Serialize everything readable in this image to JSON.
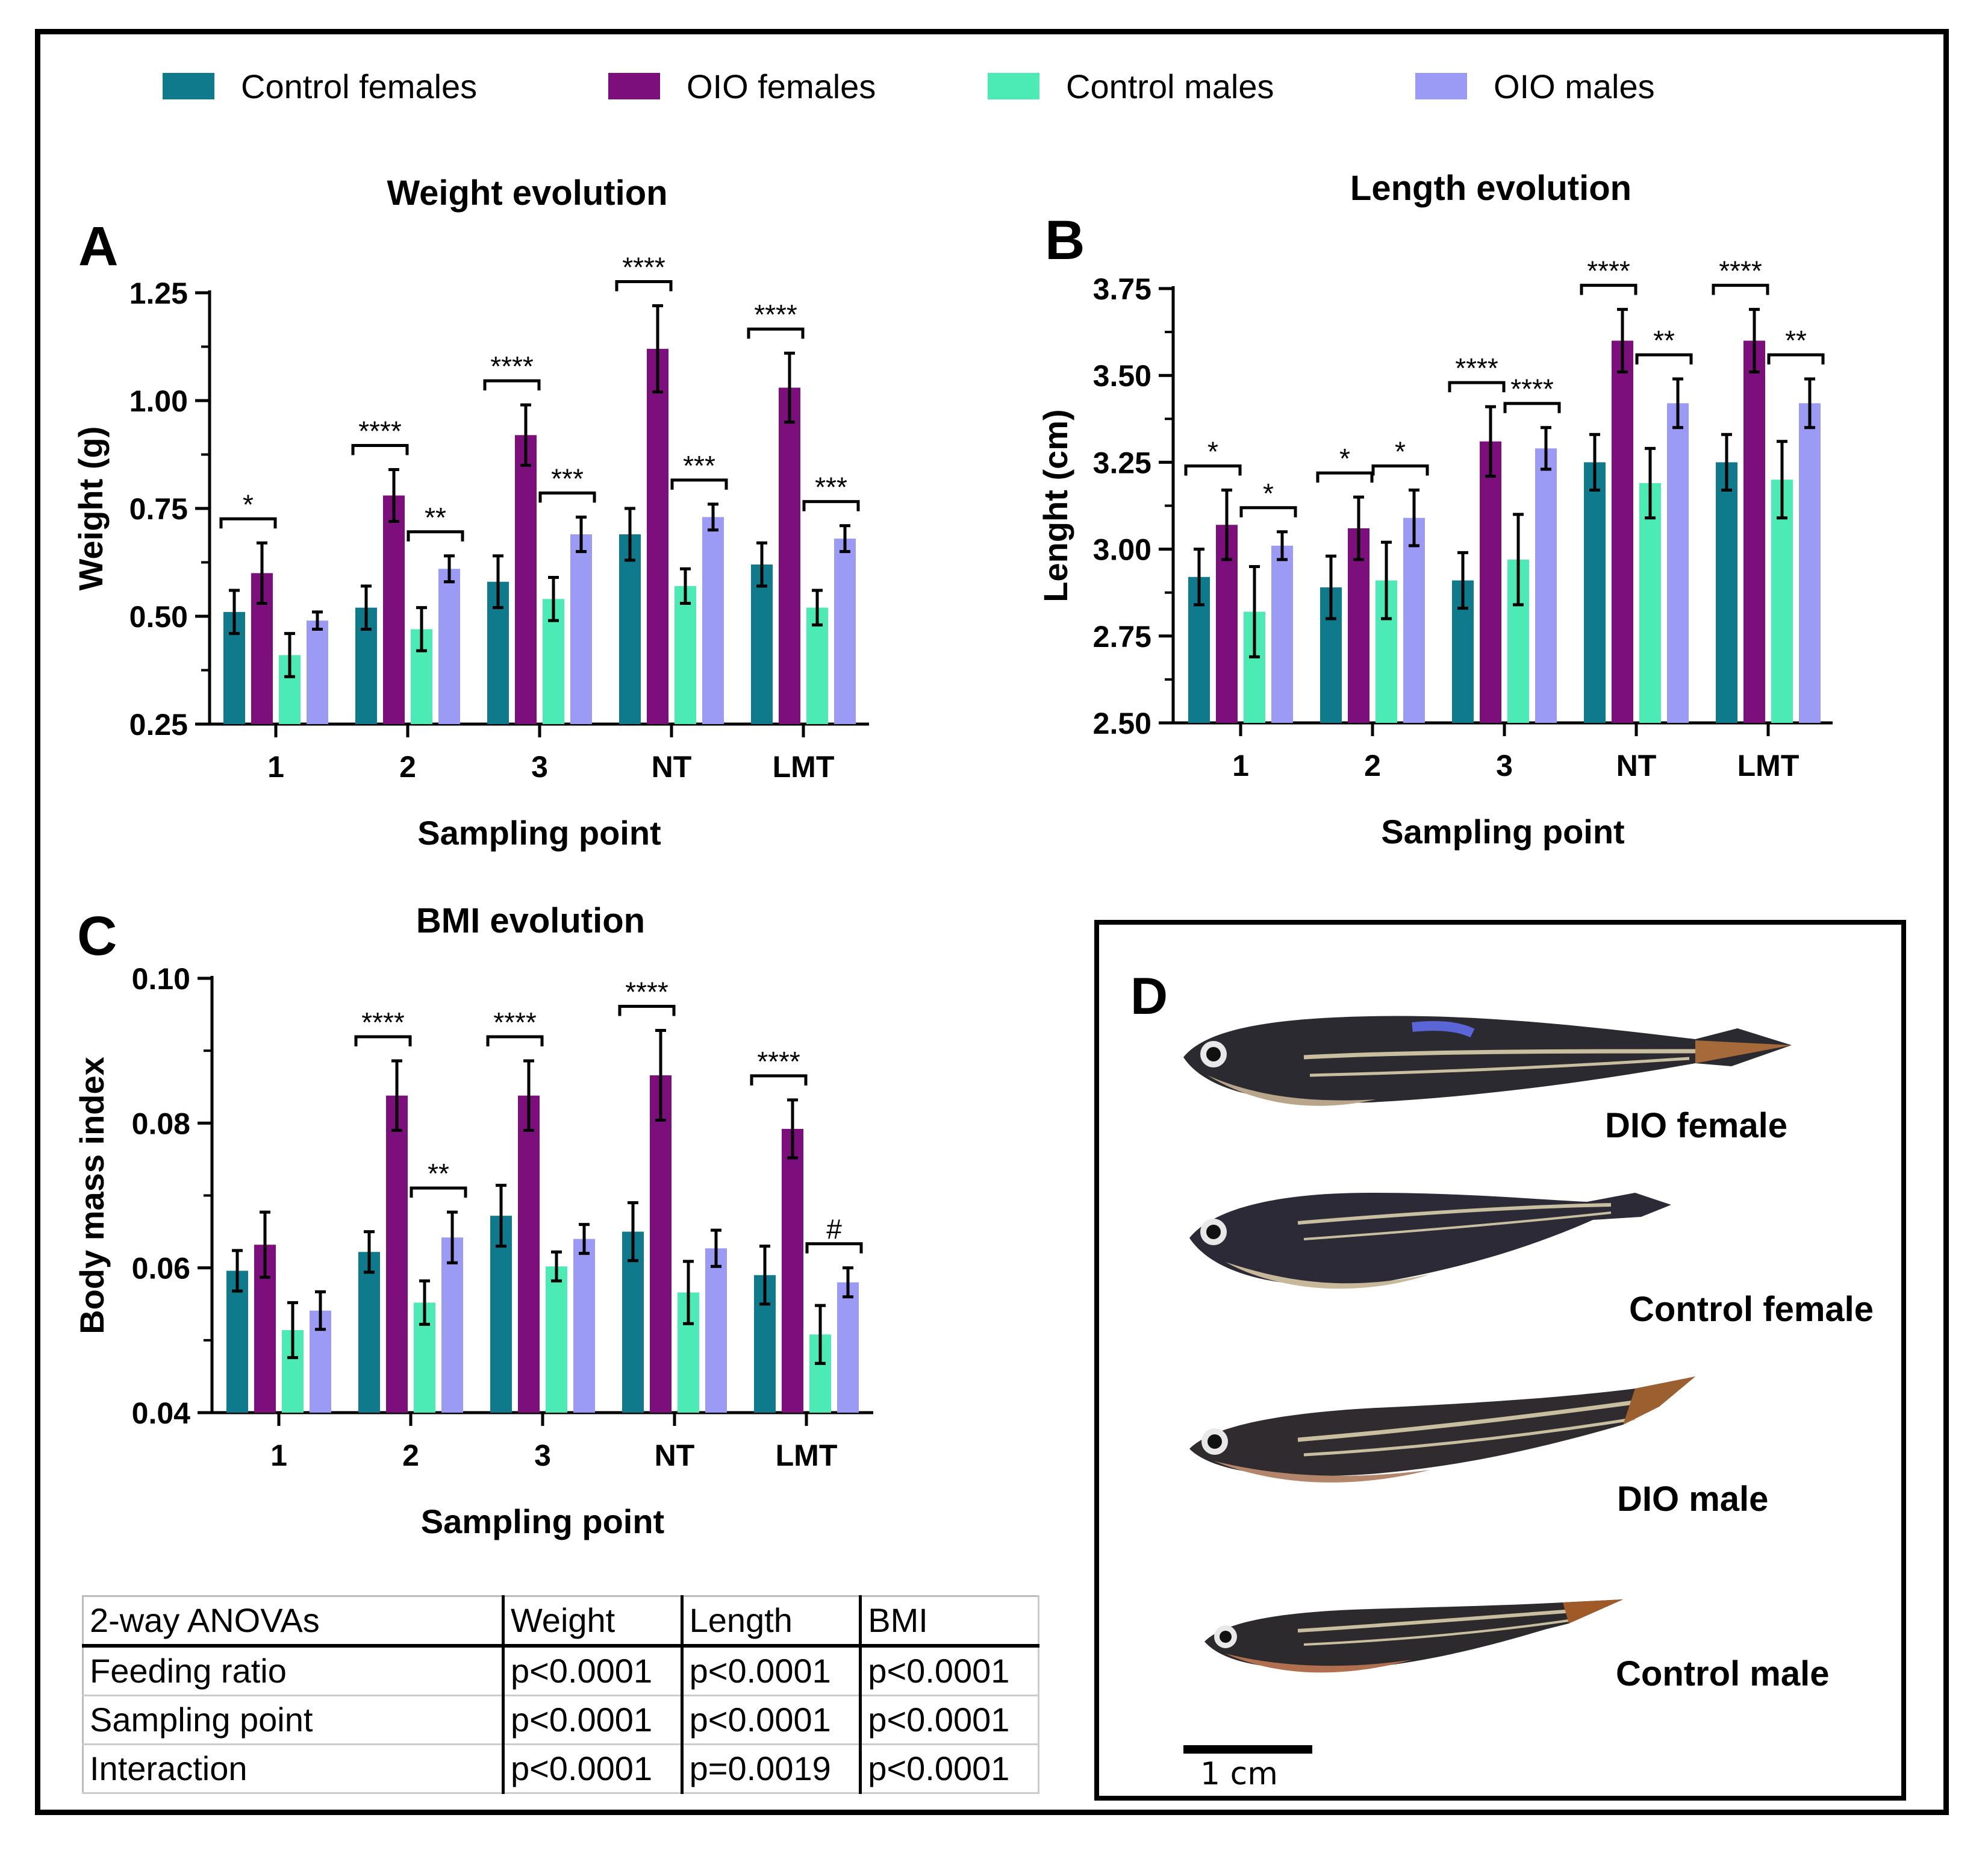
{
  "legend": [
    {
      "label": "Control females",
      "color": "#0f7a8c"
    },
    {
      "label": "OIO females",
      "color": "#7d0f7d"
    },
    {
      "label": "Control males",
      "color": "#4cebb5"
    },
    {
      "label": "OIO males",
      "color": "#9b9bf5"
    }
  ],
  "chart_data": [
    {
      "id": "A",
      "type": "bar",
      "panel_letter": "A",
      "title": "Weight evolution",
      "xlabel": "Sampling point",
      "ylabel": "Weight (g)",
      "ylim": [
        0.25,
        1.25
      ],
      "yticks": [
        "0.25",
        "0.50",
        "0.75",
        "1.00",
        "1.25"
      ],
      "ytick_values": [
        0.25,
        0.5,
        0.75,
        1.0,
        1.25
      ],
      "categories": [
        "1",
        "2",
        "3",
        "NT",
        "LMT"
      ],
      "series": [
        {
          "name": "Control females",
          "values": [
            0.51,
            0.52,
            0.58,
            0.69,
            0.62
          ],
          "errors": [
            0.05,
            0.05,
            0.06,
            0.06,
            0.05
          ]
        },
        {
          "name": "OIO females",
          "values": [
            0.6,
            0.78,
            0.92,
            1.12,
            1.03
          ],
          "errors": [
            0.07,
            0.06,
            0.07,
            0.1,
            0.08
          ]
        },
        {
          "name": "Control males",
          "values": [
            0.41,
            0.47,
            0.54,
            0.57,
            0.52
          ],
          "errors": [
            0.05,
            0.05,
            0.05,
            0.04,
            0.04
          ]
        },
        {
          "name": "OIO males",
          "values": [
            0.49,
            0.61,
            0.69,
            0.73,
            0.68
          ],
          "errors": [
            0.02,
            0.03,
            0.04,
            0.03,
            0.03
          ]
        }
      ],
      "significance": [
        {
          "category": "1",
          "pair": "females",
          "label": "*"
        },
        {
          "category": "2",
          "pair": "females",
          "label": "****"
        },
        {
          "category": "2",
          "pair": "males",
          "label": "**"
        },
        {
          "category": "3",
          "pair": "females",
          "label": "****"
        },
        {
          "category": "3",
          "pair": "males",
          "label": "***"
        },
        {
          "category": "NT",
          "pair": "females",
          "label": "****"
        },
        {
          "category": "NT",
          "pair": "males",
          "label": "***"
        },
        {
          "category": "LMT",
          "pair": "females",
          "label": "****"
        },
        {
          "category": "LMT",
          "pair": "males",
          "label": "***"
        }
      ]
    },
    {
      "id": "B",
      "type": "bar",
      "panel_letter": "B",
      "title": "Length evolution",
      "xlabel": "Sampling point",
      "ylabel": "Lenght (cm)",
      "ylim": [
        2.5,
        3.75
      ],
      "yticks": [
        "2.50",
        "2.75",
        "3.00",
        "3.25",
        "3.50",
        "3.75"
      ],
      "ytick_values": [
        2.5,
        2.75,
        3.0,
        3.25,
        3.5,
        3.75
      ],
      "categories": [
        "1",
        "2",
        "3",
        "NT",
        "LMT"
      ],
      "series": [
        {
          "name": "Control females",
          "values": [
            2.92,
            2.89,
            2.91,
            3.25,
            3.25
          ],
          "errors": [
            0.08,
            0.09,
            0.08,
            0.08,
            0.08
          ]
        },
        {
          "name": "OIO females",
          "values": [
            3.07,
            3.06,
            3.31,
            3.6,
            3.6
          ],
          "errors": [
            0.1,
            0.09,
            0.1,
            0.09,
            0.09
          ]
        },
        {
          "name": "Control males",
          "values": [
            2.82,
            2.91,
            2.97,
            3.19,
            3.2
          ],
          "errors": [
            0.13,
            0.11,
            0.13,
            0.1,
            0.11
          ]
        },
        {
          "name": "OIO males",
          "values": [
            3.01,
            3.09,
            3.29,
            3.42,
            3.42
          ],
          "errors": [
            0.04,
            0.08,
            0.06,
            0.07,
            0.07
          ]
        }
      ],
      "significance": [
        {
          "category": "1",
          "pair": "females",
          "label": "*"
        },
        {
          "category": "1",
          "pair": "males",
          "label": "*"
        },
        {
          "category": "2",
          "pair": "females",
          "label": "*"
        },
        {
          "category": "2",
          "pair": "males",
          "label": "*"
        },
        {
          "category": "3",
          "pair": "females",
          "label": "****"
        },
        {
          "category": "3",
          "pair": "males",
          "label": "****"
        },
        {
          "category": "NT",
          "pair": "females",
          "label": "****"
        },
        {
          "category": "NT",
          "pair": "males",
          "label": "**"
        },
        {
          "category": "LMT",
          "pair": "females",
          "label": "****"
        },
        {
          "category": "LMT",
          "pair": "males",
          "label": "**"
        }
      ]
    },
    {
      "id": "C",
      "type": "bar",
      "panel_letter": "C",
      "title": "BMI evolution",
      "xlabel": "Sampling point",
      "ylabel": "Body mass index",
      "ylim": [
        0.04,
        0.1
      ],
      "yticks": [
        "0.04",
        "0.06",
        "0.08",
        "0.10"
      ],
      "ytick_values": [
        0.04,
        0.06,
        0.08,
        0.1
      ],
      "categories": [
        "1",
        "2",
        "3",
        "NT",
        "LMT"
      ],
      "series": [
        {
          "name": "Control females",
          "values": [
            0.0596,
            0.0622,
            0.0672,
            0.065,
            0.059
          ],
          "errors": [
            0.0028,
            0.0028,
            0.0042,
            0.004,
            0.004
          ]
        },
        {
          "name": "OIO females",
          "values": [
            0.0632,
            0.0838,
            0.0838,
            0.0866,
            0.0792
          ],
          "errors": [
            0.0045,
            0.0048,
            0.0048,
            0.0062,
            0.004
          ]
        },
        {
          "name": "Control males",
          "values": [
            0.0514,
            0.0552,
            0.0602,
            0.0566,
            0.0508
          ],
          "errors": [
            0.0038,
            0.003,
            0.002,
            0.0043,
            0.004
          ]
        },
        {
          "name": "OIO males",
          "values": [
            0.0541,
            0.0642,
            0.064,
            0.0627,
            0.058
          ],
          "errors": [
            0.0026,
            0.0035,
            0.002,
            0.0025,
            0.002
          ]
        }
      ],
      "significance": [
        {
          "category": "2",
          "pair": "females",
          "label": "****"
        },
        {
          "category": "2",
          "pair": "males",
          "label": "**"
        },
        {
          "category": "3",
          "pair": "females",
          "label": "****"
        },
        {
          "category": "NT",
          "pair": "females",
          "label": "****"
        },
        {
          "category": "LMT",
          "pair": "females",
          "label": "****"
        },
        {
          "category": "LMT",
          "pair": "males",
          "label": "#"
        }
      ]
    }
  ],
  "anova_table": {
    "header": [
      "2-way ANOVAs",
      "Weight",
      "Length",
      "BMI"
    ],
    "rows": [
      [
        "Feeding ratio",
        "p<0.0001",
        "p<0.0001",
        "p<0.0001"
      ],
      [
        "Sampling point",
        "p<0.0001",
        "p<0.0001",
        "p<0.0001"
      ],
      [
        "Interaction",
        "p<0.0001",
        "p=0.0019",
        "p<0.0001"
      ]
    ]
  },
  "photo_panel": {
    "letter": "D",
    "labels": [
      "DIO female",
      "Control female",
      "DIO male",
      "Control male"
    ],
    "scale_bar_label": "1 cm"
  }
}
